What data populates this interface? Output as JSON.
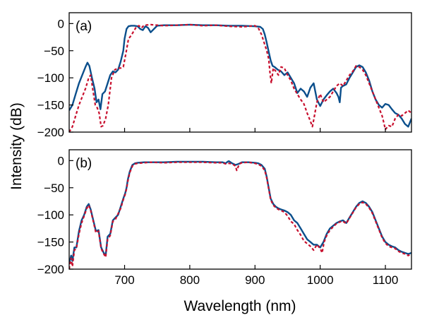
{
  "figure": {
    "ylabel": "Intensity (dB)",
    "xlabel": "Wavelength (nm)"
  },
  "chart_data": [
    {
      "type": "line",
      "panel_label": "(a)",
      "xlim": [
        615,
        1140
      ],
      "ylim": [
        -200,
        20
      ],
      "xticks": [
        700,
        800,
        900,
        1000,
        1100
      ],
      "xtick_labels_shown": false,
      "yticks": [
        0,
        -50,
        -100,
        -150,
        -200
      ],
      "ytick_labels": [
        "0",
        "−50",
        "−100",
        "−150",
        "−200"
      ],
      "grid": false,
      "series": [
        {
          "style": "solid",
          "color": "#0b4f8c",
          "x": [
            615,
            620,
            625,
            630,
            635,
            640,
            643,
            646,
            650,
            654,
            657,
            660,
            663,
            666,
            670,
            674,
            678,
            682,
            686,
            690,
            694,
            698,
            700,
            703,
            706,
            710,
            715,
            720,
            724,
            728,
            732,
            736,
            740,
            750,
            760,
            780,
            800,
            820,
            840,
            860,
            880,
            900,
            908,
            912,
            915,
            918,
            921,
            924,
            927,
            930,
            935,
            940,
            945,
            950,
            955,
            960,
            965,
            970,
            975,
            980,
            985,
            990,
            995,
            1000,
            1005,
            1010,
            1015,
            1020,
            1025,
            1028,
            1030,
            1032,
            1035,
            1040,
            1045,
            1050,
            1055,
            1060,
            1065,
            1070,
            1075,
            1080,
            1085,
            1090,
            1095,
            1100,
            1105,
            1110,
            1115,
            1120,
            1125,
            1130,
            1135,
            1140
          ],
          "y": [
            -160,
            -150,
            -130,
            -110,
            -95,
            -80,
            -72,
            -78,
            -100,
            -120,
            -145,
            -140,
            -158,
            -130,
            -125,
            -110,
            -95,
            -88,
            -90,
            -85,
            -70,
            -50,
            -28,
            -10,
            -5,
            -4,
            -4,
            -5,
            -10,
            -12,
            -5,
            -8,
            -16,
            -4,
            -3,
            -3,
            -2,
            -3,
            -3,
            -4,
            -4,
            -5,
            -6,
            -10,
            -20,
            -35,
            -52,
            -68,
            -78,
            -80,
            -85,
            -88,
            -95,
            -90,
            -100,
            -110,
            -128,
            -120,
            -125,
            -135,
            -118,
            -110,
            -140,
            -152,
            -140,
            -132,
            -125,
            -120,
            -128,
            -135,
            -145,
            -118,
            -115,
            -112,
            -100,
            -90,
            -80,
            -77,
            -80,
            -90,
            -105,
            -125,
            -140,
            -150,
            -155,
            -148,
            -150,
            -158,
            -165,
            -168,
            -175,
            -185,
            -190,
            -175
          ]
        },
        {
          "style": "dashed",
          "color": "#c8102e",
          "x": [
            615,
            620,
            625,
            630,
            635,
            640,
            645,
            648,
            651,
            655,
            658,
            661,
            664,
            667,
            671,
            675,
            680,
            685,
            690,
            694,
            698,
            702,
            706,
            710,
            714,
            718,
            722,
            726,
            730,
            740,
            760,
            780,
            800,
            820,
            840,
            860,
            880,
            900,
            905,
            910,
            914,
            918,
            921,
            923,
            925,
            928,
            932,
            936,
            940,
            945,
            950,
            955,
            960,
            965,
            970,
            975,
            980,
            985,
            988,
            990,
            995,
            1000,
            1005,
            1010,
            1015,
            1020,
            1025,
            1030,
            1035,
            1040,
            1045,
            1050,
            1055,
            1060,
            1065,
            1070,
            1075,
            1080,
            1085,
            1090,
            1095,
            1097,
            1100,
            1105,
            1110,
            1115,
            1120,
            1125,
            1130,
            1135,
            1140
          ],
          "y": [
            -200,
            -190,
            -170,
            -150,
            -135,
            -120,
            -100,
            -95,
            -120,
            -150,
            -155,
            -165,
            -190,
            -188,
            -175,
            -150,
            -100,
            -85,
            -82,
            -82,
            -80,
            -55,
            -28,
            -22,
            -14,
            -6,
            -4,
            -8,
            -3,
            -2,
            -4,
            -3,
            -2,
            -4,
            -3,
            -5,
            -6,
            -4,
            -8,
            -20,
            -35,
            -50,
            -65,
            -90,
            -110,
            -82,
            -88,
            -95,
            -80,
            -82,
            -95,
            -105,
            -120,
            -130,
            -140,
            -148,
            -165,
            -180,
            -190,
            -178,
            -145,
            -130,
            -145,
            -140,
            -135,
            -125,
            -115,
            -110,
            -115,
            -105,
            -95,
            -88,
            -78,
            -80,
            -85,
            -95,
            -110,
            -125,
            -140,
            -155,
            -170,
            -180,
            -195,
            -188,
            -190,
            -175,
            -168,
            -170,
            -165,
            -160,
            -165
          ]
        }
      ]
    },
    {
      "type": "line",
      "panel_label": "(b)",
      "xlim": [
        615,
        1140
      ],
      "ylim": [
        -200,
        20
      ],
      "xticks": [
        700,
        800,
        900,
        1000,
        1100
      ],
      "xtick_labels": [
        "700",
        "800",
        "900",
        "1000",
        "1100"
      ],
      "yticks": [
        0,
        -50,
        -100,
        -150,
        -200
      ],
      "ytick_labels": [
        "0",
        "−50",
        "−100",
        "−150",
        "−200"
      ],
      "grid": false,
      "series": [
        {
          "style": "solid",
          "color": "#0b4f8c",
          "x": [
            615,
            618,
            620,
            623,
            626,
            630,
            634,
            638,
            642,
            645,
            648,
            652,
            656,
            660,
            664,
            668,
            671,
            674,
            678,
            682,
            686,
            690,
            694,
            698,
            701,
            703,
            705,
            708,
            712,
            716,
            720,
            730,
            740,
            760,
            780,
            800,
            820,
            840,
            850,
            855,
            858,
            860,
            865,
            870,
            875,
            880,
            890,
            900,
            905,
            910,
            915,
            918,
            921,
            924,
            928,
            932,
            936,
            940,
            945,
            950,
            955,
            960,
            965,
            970,
            975,
            980,
            985,
            990,
            995,
            1000,
            1005,
            1010,
            1015,
            1020,
            1025,
            1030,
            1035,
            1040,
            1045,
            1050,
            1055,
            1060,
            1065,
            1070,
            1075,
            1080,
            1085,
            1090,
            1095,
            1100,
            1105,
            1110,
            1115,
            1120,
            1125,
            1130,
            1135,
            1140
          ],
          "y": [
            -190,
            -175,
            -185,
            -160,
            -160,
            -130,
            -110,
            -100,
            -85,
            -80,
            -90,
            -110,
            -130,
            -128,
            -160,
            -170,
            -175,
            -140,
            -135,
            -110,
            -105,
            -100,
            -85,
            -70,
            -60,
            -50,
            -35,
            -20,
            -8,
            -5,
            -4,
            -3,
            -3,
            -3,
            -2,
            -2,
            -2,
            -3,
            -3,
            -5,
            -2,
            -1,
            -5,
            -8,
            -6,
            -3,
            -3,
            -4,
            -5,
            -8,
            -15,
            -30,
            -50,
            -70,
            -80,
            -85,
            -88,
            -90,
            -92,
            -95,
            -100,
            -110,
            -115,
            -125,
            -135,
            -145,
            -150,
            -155,
            -155,
            -160,
            -150,
            -135,
            -125,
            -120,
            -115,
            -112,
            -110,
            -115,
            -105,
            -95,
            -85,
            -78,
            -75,
            -78,
            -85,
            -95,
            -110,
            -125,
            -140,
            -150,
            -155,
            -158,
            -160,
            -165,
            -168,
            -170,
            -172,
            -170
          ]
        },
        {
          "style": "dashed",
          "color": "#c8102e",
          "x": [
            615,
            618,
            620,
            623,
            626,
            630,
            634,
            638,
            642,
            645,
            648,
            652,
            656,
            660,
            664,
            668,
            671,
            674,
            678,
            682,
            686,
            690,
            694,
            698,
            701,
            703,
            705,
            708,
            712,
            716,
            720,
            730,
            740,
            760,
            780,
            800,
            820,
            840,
            850,
            855,
            860,
            865,
            870,
            872,
            874,
            876,
            880,
            890,
            900,
            905,
            910,
            915,
            918,
            921,
            924,
            928,
            932,
            936,
            940,
            945,
            950,
            955,
            960,
            965,
            970,
            975,
            980,
            985,
            990,
            995,
            1000,
            1003,
            1006,
            1010,
            1015,
            1020,
            1025,
            1030,
            1035,
            1040,
            1045,
            1050,
            1055,
            1060,
            1065,
            1070,
            1075,
            1080,
            1085,
            1090,
            1095,
            1100,
            1105,
            1110,
            1115,
            1120,
            1125,
            1130,
            1135,
            1140
          ],
          "y": [
            -200,
            -180,
            -195,
            -165,
            -162,
            -135,
            -115,
            -102,
            -88,
            -82,
            -92,
            -112,
            -133,
            -130,
            -162,
            -172,
            -178,
            -145,
            -138,
            -112,
            -108,
            -98,
            -88,
            -72,
            -62,
            -52,
            -38,
            -22,
            -10,
            -6,
            -5,
            -4,
            -3,
            -4,
            -3,
            -3,
            -3,
            -4,
            -4,
            -6,
            -5,
            -6,
            -10,
            -18,
            -12,
            -6,
            -4,
            -3,
            -5,
            -7,
            -10,
            -18,
            -32,
            -52,
            -72,
            -82,
            -87,
            -90,
            -92,
            -95,
            -102,
            -112,
            -117,
            -128,
            -137,
            -148,
            -153,
            -158,
            -165,
            -155,
            -162,
            -170,
            -150,
            -138,
            -128,
            -122,
            -116,
            -113,
            -112,
            -116,
            -106,
            -96,
            -86,
            -80,
            -77,
            -80,
            -87,
            -97,
            -112,
            -127,
            -142,
            -152,
            -158,
            -160,
            -162,
            -167,
            -170,
            -172,
            -175,
            -172
          ]
        }
      ]
    }
  ]
}
